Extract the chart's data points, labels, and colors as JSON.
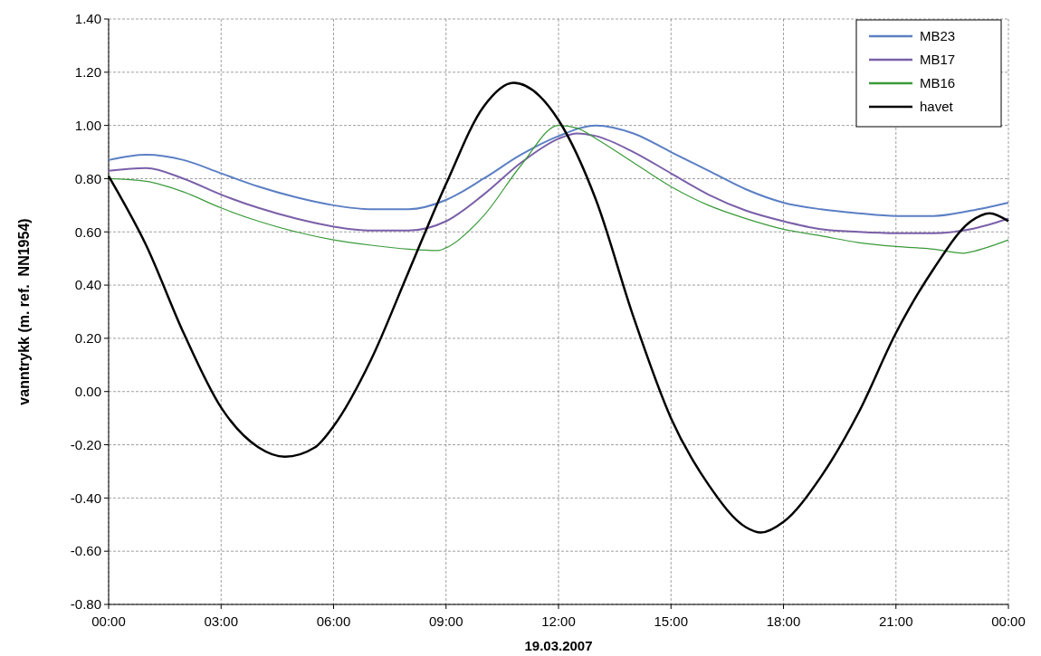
{
  "chart_data": {
    "type": "line",
    "xlabel": "19.03.2007",
    "ylabel": "vanntrykk (m. ref.  NN1954)",
    "xlim": [
      0,
      24
    ],
    "xticks": [
      {
        "value": 0,
        "label": "00:00"
      },
      {
        "value": 3,
        "label": "03:00"
      },
      {
        "value": 6,
        "label": "06:00"
      },
      {
        "value": 9,
        "label": "09:00"
      },
      {
        "value": 12,
        "label": "12:00"
      },
      {
        "value": 15,
        "label": "15:00"
      },
      {
        "value": 18,
        "label": "18:00"
      },
      {
        "value": 21,
        "label": "21:00"
      },
      {
        "value": 24,
        "label": "00:00"
      }
    ],
    "ylim": [
      -0.8,
      1.4
    ],
    "yticks": [
      {
        "value": -0.8,
        "label": "-0.80"
      },
      {
        "value": -0.6,
        "label": "-0.60"
      },
      {
        "value": -0.4,
        "label": "-0.40"
      },
      {
        "value": -0.2,
        "label": "-0.20"
      },
      {
        "value": 0,
        "label": "0.00"
      },
      {
        "value": 0.2,
        "label": "0.20"
      },
      {
        "value": 0.4,
        "label": "0.40"
      },
      {
        "value": 0.6,
        "label": "0.60"
      },
      {
        "value": 0.8,
        "label": "0.80"
      },
      {
        "value": 1,
        "label": "1.00"
      },
      {
        "value": 1.2,
        "label": "1.20"
      },
      {
        "value": 1.4,
        "label": "1.40"
      }
    ],
    "grid": true,
    "legend": "top right",
    "line_style": "solid",
    "marker": "none",
    "series": [
      {
        "name": "MB23",
        "color": "#5b7fc4",
        "x": [
          0,
          1,
          2,
          3,
          4,
          5,
          6,
          7,
          8,
          9,
          10,
          11,
          12,
          13,
          14,
          15,
          16,
          17,
          18,
          19,
          20,
          21,
          22,
          23,
          24
        ],
        "values": [
          0.87,
          0.89,
          0.87,
          0.82,
          0.77,
          0.73,
          0.7,
          0.685,
          0.685,
          0.72,
          0.8,
          0.89,
          0.96,
          1.0,
          0.97,
          0.9,
          0.83,
          0.76,
          0.71,
          0.685,
          0.67,
          0.66,
          0.66,
          0.68,
          0.71
        ]
      },
      {
        "name": "MB17",
        "color": "#7a5fa8",
        "x": [
          0,
          1,
          2,
          3,
          4,
          5,
          6,
          7,
          8,
          9,
          10,
          11,
          12,
          12.5,
          13,
          14,
          15,
          16,
          17,
          18,
          19,
          20,
          21,
          22,
          23,
          24
        ],
        "values": [
          0.83,
          0.84,
          0.8,
          0.74,
          0.69,
          0.65,
          0.62,
          0.605,
          0.605,
          0.64,
          0.74,
          0.86,
          0.95,
          0.97,
          0.96,
          0.9,
          0.82,
          0.74,
          0.68,
          0.64,
          0.61,
          0.6,
          0.595,
          0.595,
          0.61,
          0.65
        ]
      },
      {
        "name": "MB16",
        "color": "#3a9a3a",
        "x": [
          0,
          1,
          2,
          3,
          4,
          5,
          6,
          7,
          8,
          8.8,
          9,
          10,
          11,
          12,
          12.5,
          13,
          14,
          15,
          16,
          17,
          18,
          19,
          20,
          21,
          22,
          22.8,
          23,
          24
        ],
        "values": [
          0.8,
          0.79,
          0.75,
          0.69,
          0.64,
          0.6,
          0.57,
          0.55,
          0.535,
          0.53,
          0.54,
          0.66,
          0.85,
          1.0,
          0.99,
          0.95,
          0.86,
          0.77,
          0.7,
          0.65,
          0.61,
          0.585,
          0.56,
          0.545,
          0.535,
          0.52,
          0.525,
          0.57
        ]
      },
      {
        "name": "havet",
        "color": "#000000",
        "x": [
          0,
          1,
          2,
          3,
          4,
          4.7,
          5.5,
          6,
          7,
          8,
          9,
          10,
          10.8,
          11.5,
          12,
          13,
          14,
          15,
          16,
          17,
          17.4,
          18,
          19,
          20,
          21,
          22,
          23,
          23.5,
          24
        ],
        "values": [
          0.81,
          0.55,
          0.22,
          -0.06,
          -0.21,
          -0.245,
          -0.21,
          -0.13,
          0.12,
          0.45,
          0.78,
          1.07,
          1.16,
          1.11,
          1.02,
          0.72,
          0.28,
          -0.1,
          -0.35,
          -0.51,
          -0.53,
          -0.49,
          -0.32,
          -0.08,
          0.22,
          0.46,
          0.64,
          0.67,
          0.64
        ]
      }
    ]
  }
}
